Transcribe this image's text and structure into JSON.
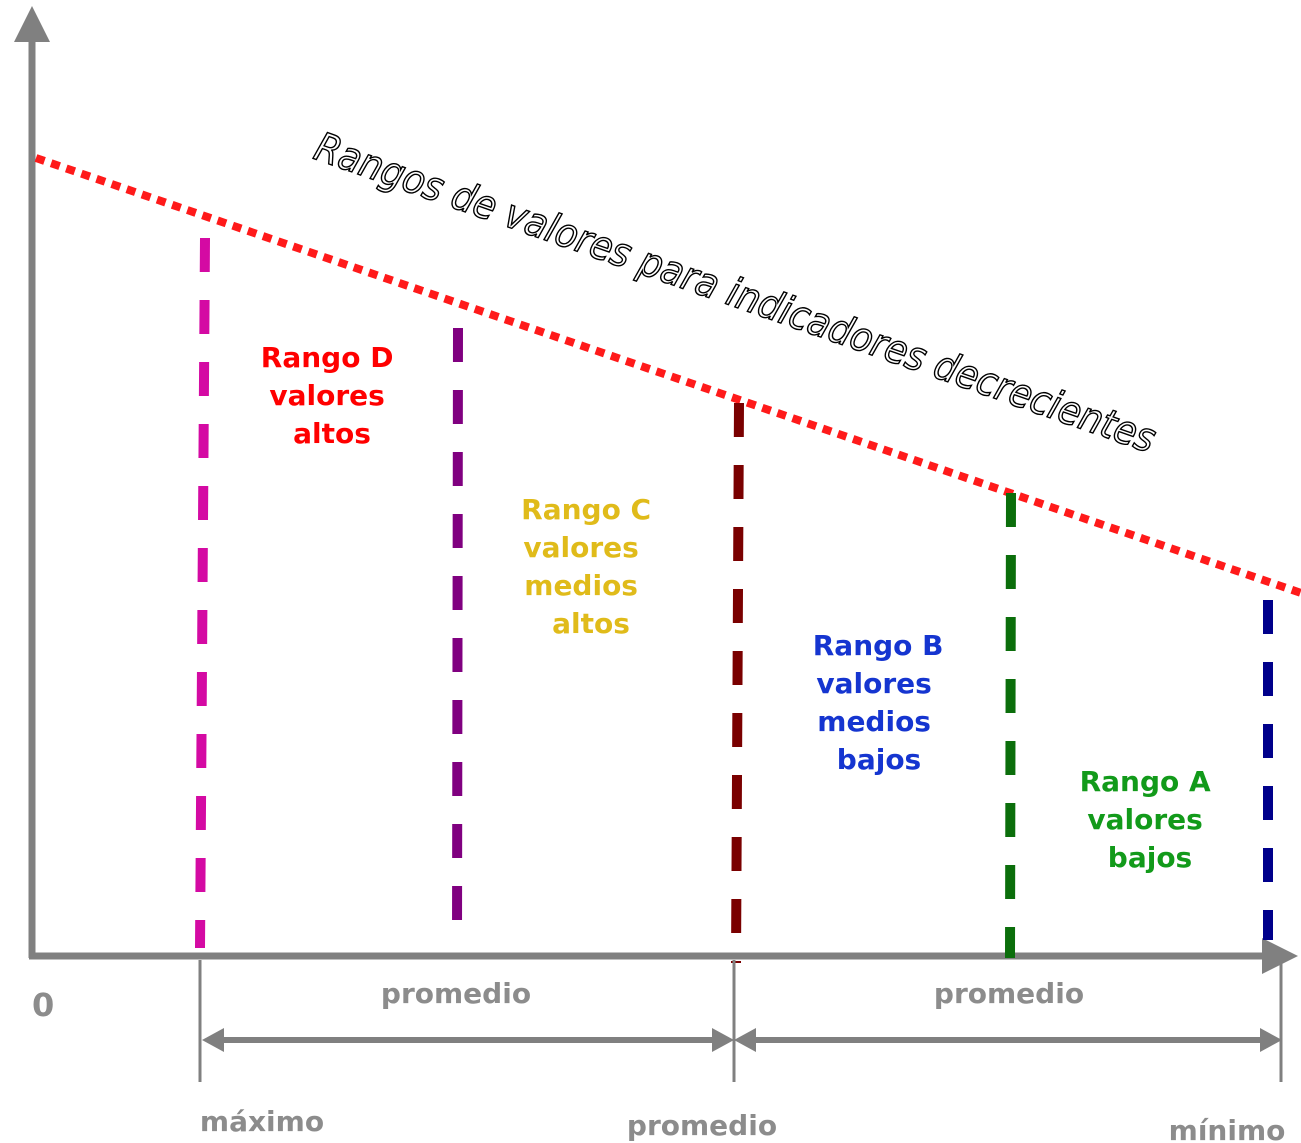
{
  "title": "Rangos de valores para indicadores decrecientes",
  "origin_label": "0",
  "ranges": [
    {
      "id": "D",
      "lines": [
        "Rango D",
        "valores",
        "altos"
      ],
      "color": "#ff0000"
    },
    {
      "id": "C",
      "lines": [
        "Rango C",
        "valores",
        "medios",
        "altos"
      ],
      "color": "#e0bb1a"
    },
    {
      "id": "B",
      "lines": [
        "Rango B",
        "valores",
        "medios",
        "bajos"
      ],
      "color": "#1535d0"
    },
    {
      "id": "A",
      "lines": [
        "Rango A",
        "valores",
        "bajos"
      ],
      "color": "#129a1a"
    }
  ],
  "divider_colors": {
    "maximo": "#d40aa3",
    "promedio_alto": "#800080",
    "promedio": "#7a0000",
    "promedio_bajo": "#0b6e0b",
    "minimo": "#00008b"
  },
  "trend_line_color": "#ff1a1a",
  "axis_color": "#808080",
  "bottom_labels": {
    "maximo": "máximo",
    "promedio": "promedio",
    "minimo": "mínimo"
  },
  "span_labels": {
    "left": "promedio",
    "right": "promedio"
  }
}
